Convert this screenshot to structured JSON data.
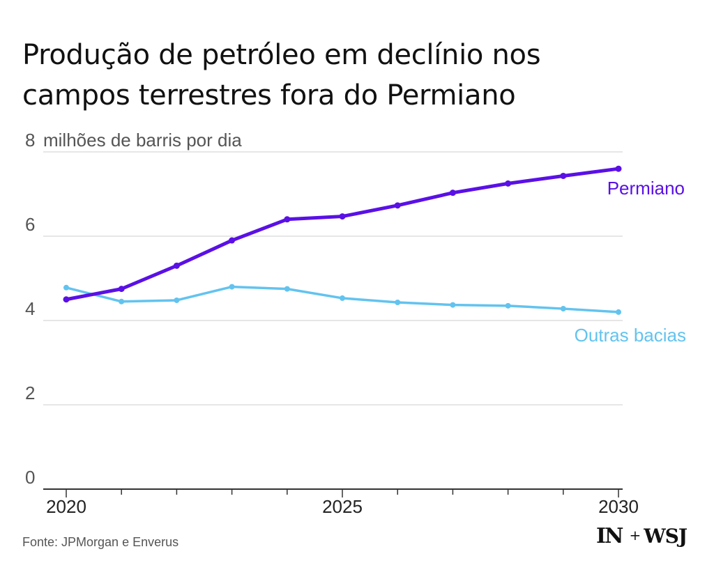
{
  "title": {
    "line1": "Produção de petróleo em declínio nos",
    "line2": "campos terrestres fora do Permiano"
  },
  "source": "Fonte: JPMorgan e Enverus",
  "logos": {
    "left": "IN",
    "plus": "+",
    "right": "WSJ"
  },
  "colors": {
    "permiano": "#5a10e6",
    "outras": "#62c3ef",
    "grid": "#e6e6e6",
    "axis_text": "#555555"
  },
  "chart_data": {
    "type": "line",
    "ylabel": "milhões de barris por dia",
    "ylim": [
      0,
      8
    ],
    "xlim": [
      2020,
      2030
    ],
    "yticks": [
      0,
      2,
      4,
      6,
      8
    ],
    "ytick_labels": [
      "0",
      "2",
      "4",
      "6",
      "8"
    ],
    "xticks_major": [
      2020,
      2025,
      2030
    ],
    "xtick_labels": [
      "2020",
      "2025",
      "2030"
    ],
    "xticks_minor": [
      2021,
      2022,
      2023,
      2024,
      2026,
      2027,
      2028,
      2029
    ],
    "x": [
      2020,
      2021,
      2022,
      2023,
      2024,
      2025,
      2026,
      2027,
      2028,
      2029,
      2030
    ],
    "series": [
      {
        "name": "Permiano",
        "color": "#5a10e6",
        "values": [
          4.5,
          4.75,
          5.3,
          5.9,
          6.4,
          6.47,
          6.73,
          7.03,
          7.25,
          7.43,
          7.6
        ]
      },
      {
        "name": "Outras bacias",
        "color": "#62c3ef",
        "values": [
          4.78,
          4.45,
          4.48,
          4.8,
          4.75,
          4.53,
          4.43,
          4.37,
          4.35,
          4.28,
          4.2
        ]
      }
    ]
  }
}
